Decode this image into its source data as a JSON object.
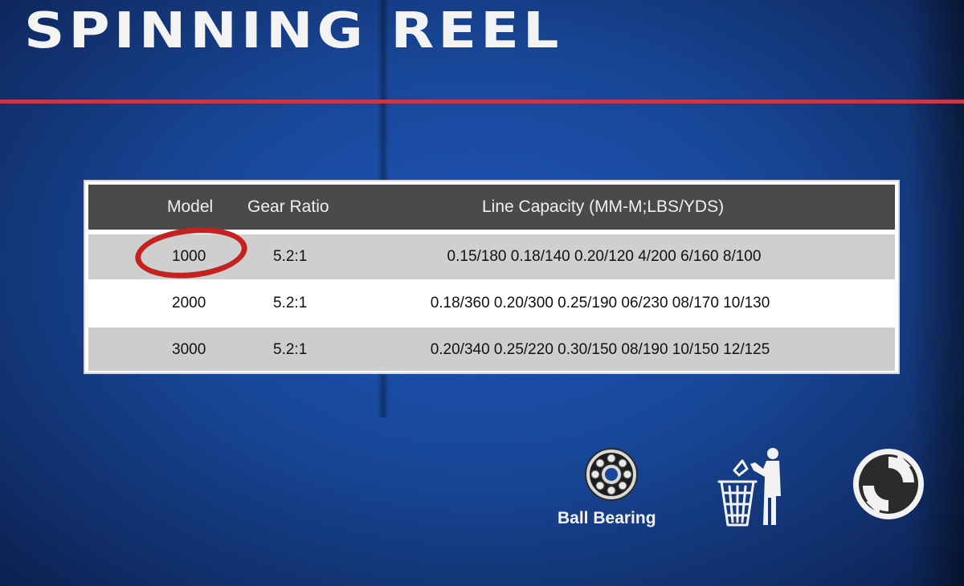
{
  "box": {
    "title": "SPINNING REEL"
  },
  "spec_table": {
    "headers": {
      "model": "Model",
      "gear_ratio": "Gear Ratio",
      "line_capacity": "Line Capacity (MM-M;LBS/YDS)"
    },
    "rows": [
      {
        "model": "1000",
        "gear_ratio": "5.2:1",
        "line_capacity": "0.15/180  0.18/140  0.20/120  4/200  6/160  8/100",
        "circled": true
      },
      {
        "model": "2000",
        "gear_ratio": "5.2:1",
        "line_capacity": "0.18/360  0.20/300  0.25/190  06/230  08/170  10/130",
        "circled": false
      },
      {
        "model": "3000",
        "gear_ratio": "5.2:1",
        "line_capacity": "0.20/340  0.25/220  0.30/150  08/190  10/150  12/125",
        "circled": false
      }
    ]
  },
  "icons": {
    "bearing": {
      "icon": "ball-bearing-icon",
      "label": "Ball Bearing"
    },
    "recycle": {
      "icon": "tidyman-bin-icon"
    },
    "green_dot": {
      "icon": "green-dot-icon"
    }
  },
  "colors": {
    "background": "#184798",
    "rule": "#c8364a",
    "header_band": "#4a4a4a",
    "circle_mark": "#c5221f"
  }
}
